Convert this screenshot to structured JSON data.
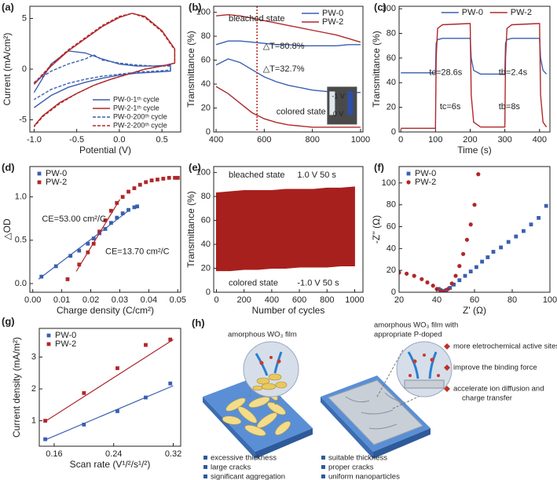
{
  "chart_data": [
    {
      "type": "line",
      "label": "(a)",
      "xlabel": "Potential (V)",
      "ylabel": "Current (mA/cm²)",
      "xlim": [
        -1.05,
        0.72
      ],
      "ylim": [
        -6.2,
        6.2
      ],
      "xticks": [
        {
          "value": -1.0,
          "label": "-1.0"
        },
        -0.5,
        {
          "value": 0,
          "label": "0.0"
        },
        0.5
      ],
      "yticks": [
        -5,
        0,
        5
      ],
      "legend": "lower right",
      "series": [
        {
          "name": "PW-0-1ᵗʰ cycle",
          "color": "#3a5fb0",
          "dash": false,
          "x": [
            -1.0,
            -0.8,
            -0.6,
            -0.4,
            -0.2,
            0.0,
            0.2,
            0.4,
            0.6,
            0.6,
            0.4,
            0.2,
            0.0,
            -0.2,
            -0.4,
            -0.6,
            -0.8,
            -1.0
          ],
          "values": [
            -2.3,
            0.5,
            1.8,
            1.6,
            1.0,
            0.5,
            0.3,
            0.3,
            0.4,
            -0.2,
            -0.3,
            -0.4,
            -0.6,
            -0.9,
            -1.3,
            -1.8,
            -2.6,
            -3.8
          ]
        },
        {
          "name": "PW-2-1ᵗʰ cycle",
          "color": "#b0282b",
          "dash": false,
          "x": [
            -1.0,
            -0.8,
            -0.6,
            -0.4,
            -0.2,
            0.0,
            0.15,
            0.3,
            0.5,
            0.65,
            0.65,
            0.5,
            0.3,
            0.1,
            -0.1,
            -0.3,
            -0.5,
            -0.7,
            -0.9,
            -1.0
          ],
          "values": [
            -1.5,
            0.3,
            1.8,
            3.0,
            4.2,
            5.1,
            5.5,
            5.2,
            3.8,
            2.0,
            0.6,
            0.3,
            0.0,
            -0.5,
            -1.0,
            -1.6,
            -2.4,
            -3.3,
            -4.6,
            -5.6
          ]
        },
        {
          "name": "PW-0-200ᵗʰ cycle",
          "color": "#3a5fb0",
          "dash": true,
          "x": [
            -1.0,
            -0.8,
            -0.6,
            -0.4,
            -0.3,
            -0.2,
            0.0,
            0.2,
            0.4,
            0.6,
            0.6,
            0.4,
            0.2,
            0.0,
            -0.2,
            -0.4,
            -0.6,
            -0.8,
            -1.0
          ],
          "values": [
            -1.3,
            -0.2,
            0.5,
            1.0,
            1.4,
            0.9,
            0.6,
            0.4,
            0.3,
            0.3,
            -0.1,
            -0.2,
            -0.3,
            -0.5,
            -0.7,
            -1.0,
            -1.4,
            -2.0,
            -3.0
          ]
        },
        {
          "name": "PW-2-200ᵗʰ cycle",
          "color": "#b0282b",
          "dash": true,
          "x": [
            -1.0,
            -0.8,
            -0.6,
            -0.4,
            -0.2,
            0.0,
            0.15,
            0.3,
            0.5,
            0.65,
            0.65,
            0.5,
            0.3,
            0.1,
            -0.1,
            -0.3,
            -0.5,
            -0.7,
            -0.9,
            -1.0
          ],
          "values": [
            -1.4,
            0.4,
            1.9,
            3.1,
            4.3,
            5.2,
            5.5,
            5.1,
            3.7,
            1.9,
            0.6,
            0.3,
            0.0,
            -0.5,
            -1.0,
            -1.6,
            -2.4,
            -3.4,
            -4.7,
            -5.7
          ]
        }
      ],
      "annotations": []
    },
    {
      "type": "line",
      "label": "(b)",
      "ylabel": "Transmittance (%)",
      "xlim": [
        390,
        1010
      ],
      "ylim": [
        0,
        105
      ],
      "xticks": [
        400,
        600,
        800,
        1000
      ],
      "yticks": [
        0,
        20,
        40,
        60,
        80,
        100
      ],
      "legend": "upper right",
      "vline": 570,
      "x": [
        400,
        450,
        500,
        550,
        600,
        650,
        700,
        750,
        800,
        850,
        900,
        950,
        1000
      ],
      "series": [
        {
          "name": "PW-0",
          "color": "#3a5fb0",
          "values": [
            73,
            76,
            76,
            75,
            74,
            73,
            73,
            72,
            72,
            72,
            72,
            73,
            73
          ]
        },
        {
          "name": "PW-2",
          "color": "#b0282b",
          "values": [
            97,
            98,
            97,
            95,
            93,
            91,
            89,
            87,
            85,
            83,
            81,
            78,
            75
          ]
        },
        {
          "name": "PW-0",
          "color": "#3a5fb0",
          "values": [
            56,
            61,
            58,
            52,
            46,
            42,
            39,
            37,
            35,
            34,
            33,
            33,
            33
          ]
        },
        {
          "name": "PW-2",
          "color": "#b0282b",
          "values": [
            38,
            32,
            24,
            16,
            11,
            8,
            6,
            5,
            4,
            4,
            4,
            4,
            4
          ]
        }
      ],
      "annotations": [
        "bleached state",
        "△T=80.8%",
        "△T=32.7%",
        "colored state",
        "-1 V",
        "0 V"
      ]
    },
    {
      "type": "line",
      "label": "(c)",
      "xlabel": "Time (s)",
      "ylabel": "Transmittance (%)",
      "xlim": [
        -5,
        430
      ],
      "ylim": [
        0,
        102
      ],
      "xticks": [
        0,
        100,
        200,
        300,
        400
      ],
      "yticks": [
        0,
        20,
        40,
        60,
        80,
        100
      ],
      "legend": "top",
      "x": [
        0,
        100,
        102,
        106,
        120,
        195,
        200,
        203,
        210,
        230,
        300,
        302,
        306,
        320,
        395,
        400,
        403,
        410,
        420
      ],
      "series": [
        {
          "name": "PW-0",
          "color": "#3a5fb0",
          "values": [
            48,
            48,
            72,
            75,
            76,
            76,
            76,
            60,
            50,
            47,
            47,
            72,
            75,
            76,
            76,
            76,
            60,
            50,
            47
          ]
        },
        {
          "name": "PW-2",
          "color": "#b0282b",
          "values": [
            3,
            3,
            60,
            84,
            87,
            88,
            88,
            30,
            8,
            4,
            4,
            60,
            84,
            87,
            88,
            88,
            30,
            8,
            4
          ]
        }
      ],
      "annotations": [
        "tc=28.6s",
        "tb=2.4s",
        "tc=6s",
        "tb=8s"
      ]
    },
    {
      "type": "scatter",
      "label": "(d)",
      "xlabel": "Charge density (C/cm²)",
      "ylabel": "△OD",
      "xlim": [
        -0.001,
        0.051
      ],
      "ylim": [
        -0.1,
        1.35
      ],
      "xticks": [
        {
          "value": 0,
          "label": "0.00"
        },
        0.01,
        0.02,
        0.03,
        0.04,
        0.05
      ],
      "yticks": [
        {
          "value": 0,
          "label": "0.0"
        },
        0.5,
        {
          "value": 1,
          "label": "1.0"
        }
      ],
      "legend": "upper left",
      "series": [
        {
          "name": "PW-0",
          "color": "#3a5fb0",
          "marker": "square",
          "x": [
            0.003,
            0.008,
            0.013,
            0.016,
            0.019,
            0.021,
            0.023,
            0.025,
            0.027,
            0.029,
            0.031,
            0.033,
            0.035,
            0.036
          ],
          "values": [
            0.08,
            0.2,
            0.32,
            0.38,
            0.46,
            0.52,
            0.58,
            0.63,
            0.7,
            0.76,
            0.81,
            0.85,
            0.88,
            0.89
          ]
        },
        {
          "name": "PW-2",
          "color": "#b0282b",
          "marker": "square",
          "x": [
            0.012,
            0.016,
            0.019,
            0.021,
            0.023,
            0.025,
            0.027,
            0.029,
            0.031,
            0.033,
            0.035,
            0.037,
            0.039,
            0.041,
            0.043,
            0.045,
            0.047,
            0.049,
            0.05
          ],
          "values": [
            0.05,
            0.22,
            0.36,
            0.46,
            0.6,
            0.73,
            0.84,
            0.93,
            1.0,
            1.06,
            1.1,
            1.14,
            1.17,
            1.19,
            1.2,
            1.21,
            1.22,
            1.22,
            1.22
          ]
        }
      ],
      "fits": [
        {
          "color": "#3a5fb0",
          "x": [
            0.002,
            0.033
          ],
          "values": [
            0.05,
            0.84
          ]
        },
        {
          "color": "#b0282b",
          "x": [
            0.015,
            0.03
          ],
          "values": [
            0.14,
            0.97
          ]
        }
      ],
      "annotations": [
        "CE=53.00 cm²/C",
        "CE=13.70 cm²/C"
      ]
    },
    {
      "type": "band",
      "label": "(e)",
      "xlabel": "Number of cycles",
      "ylabel": "Transmittance (%)",
      "xlim": [
        -20,
        1060
      ],
      "ylim": [
        0,
        105
      ],
      "xticks": [
        0,
        200,
        400,
        600,
        800,
        1000
      ],
      "yticks": [
        0,
        20,
        40,
        60,
        80,
        100
      ],
      "color": "#a8201e",
      "x": [
        0,
        100,
        200,
        300,
        400,
        500,
        600,
        700,
        800,
        900,
        1000
      ],
      "upper": [
        83,
        84,
        85,
        85,
        85,
        86,
        86,
        86,
        87,
        87,
        88
      ],
      "lower": [
        18,
        18,
        19,
        19,
        20,
        20,
        21,
        21,
        21,
        22,
        22
      ],
      "annotations": [
        "bleached state",
        "1.0 V 50 s",
        "colored state",
        "-1.0 V 50 s"
      ]
    },
    {
      "type": "scatter",
      "label": "(f)",
      "xlabel": "Z' (Ω)",
      "ylabel": "-Z'' (Ω)",
      "xlim": [
        20,
        100
      ],
      "ylim": [
        0,
        115
      ],
      "xticks": [
        20,
        40,
        60,
        80,
        100
      ],
      "yticks": [
        0,
        20,
        40,
        60,
        80,
        100
      ],
      "legend": "upper left",
      "series": [
        {
          "name": "PW-0",
          "color": "#3a5fb0",
          "marker": "square",
          "x": [
            41,
            42,
            43,
            44,
            45,
            47,
            49,
            52,
            55,
            58,
            61,
            64,
            67,
            70,
            74,
            78,
            82,
            86,
            90,
            94,
            98
          ],
          "values": [
            3,
            2,
            1,
            1,
            2,
            4,
            7,
            11,
            15,
            19,
            23,
            28,
            32,
            37,
            41,
            46,
            51,
            56,
            62,
            68,
            79
          ]
        },
        {
          "name": "PW-2",
          "color": "#b0282b",
          "marker": "circle",
          "x": [
            20,
            24,
            28,
            32,
            35,
            38,
            40,
            42,
            44,
            46,
            48,
            50,
            52,
            54,
            56,
            58,
            60,
            62
          ],
          "values": [
            18,
            17,
            15,
            12,
            9,
            6,
            3,
            1,
            1,
            3,
            8,
            15,
            24,
            35,
            48,
            62,
            80,
            108
          ]
        }
      ],
      "annotations": []
    },
    {
      "type": "scatter",
      "label": "(g)",
      "xlabel": "Scan rate (V¹/²/s¹/²)",
      "ylabel": "Current density (mA/m²)",
      "xlim": [
        0.14,
        0.33
      ],
      "ylim": [
        0.2,
        3.9
      ],
      "xticks": [
        0.16,
        0.24,
        0.32
      ],
      "yticks": [
        1,
        2,
        3
      ],
      "legend": "upper left",
      "series": [
        {
          "name": "PW-0",
          "color": "#3a5fb0",
          "marker": "square",
          "x": [
            0.148,
            0.2,
            0.245,
            0.283,
            0.316
          ],
          "values": [
            0.42,
            0.88,
            1.3,
            1.73,
            2.17
          ]
        },
        {
          "name": "PW-2",
          "color": "#b0282b",
          "marker": "square",
          "x": [
            0.148,
            0.2,
            0.245,
            0.283,
            0.316
          ],
          "values": [
            1.0,
            1.87,
            2.65,
            3.38,
            3.55
          ]
        }
      ],
      "fits": [
        {
          "color": "#3a5fb0",
          "x": [
            0.148,
            0.32
          ],
          "values": [
            0.4,
            2.1
          ]
        },
        {
          "color": "#b0282b",
          "x": [
            0.148,
            0.32
          ],
          "values": [
            0.98,
            3.55
          ]
        }
      ],
      "annotations": []
    }
  ],
  "diagram": {
    "label": "(h)",
    "left": {
      "title": "amorphous WO₃ film",
      "bullets": [
        "excessive thickness",
        "large cracks",
        "significant aggregation"
      ]
    },
    "right": {
      "title": [
        "amorphous WO₃ film with",
        "appropriate P-doped"
      ],
      "bullets": [
        "suitable thickness",
        "proper cracks",
        "uniform nanoparticles"
      ],
      "benefits": [
        [
          "more eletrochemical active sites"
        ],
        [
          "improve the binding force"
        ],
        [
          "accelerate ion diffusion and",
          "charge transfer"
        ]
      ]
    }
  }
}
